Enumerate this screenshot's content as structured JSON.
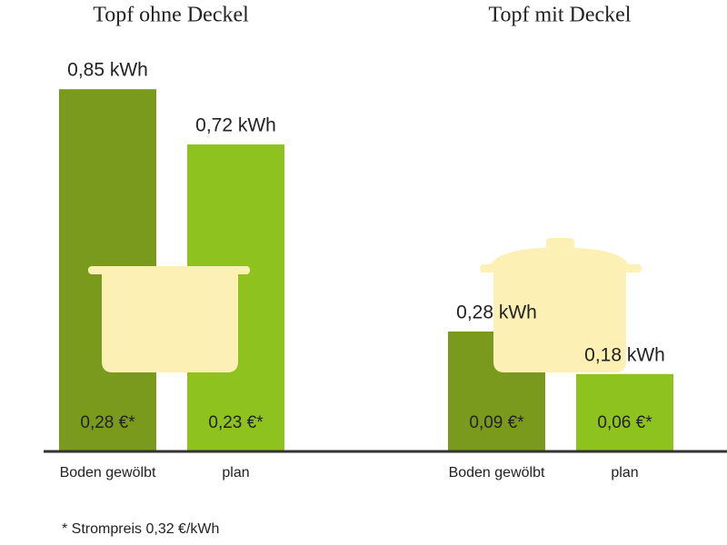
{
  "chart_data": [
    {
      "type": "bar",
      "title": "Topf ohne Deckel",
      "categories": [
        "Boden gewölbt",
        "plan"
      ],
      "values": [
        0.85,
        0.72
      ],
      "value_labels": [
        "0,85 kWh",
        "0,72 kWh"
      ],
      "colors": [
        "#7a9a1e",
        "#8dc21f"
      ],
      "costs": {
        "values": [
          0.28,
          0.23
        ],
        "value_labels": [
          "0,28 €*",
          "0,23 €*"
        ]
      }
    },
    {
      "type": "bar",
      "title": "Topf mit Deckel",
      "categories": [
        "Boden gewölbt",
        "plan"
      ],
      "values": [
        0.28,
        0.18
      ],
      "value_labels": [
        "0,28 kWh",
        "0,18 kWh"
      ],
      "colors": [
        "#7a9a1e",
        "#8dc21f"
      ],
      "costs": {
        "values": [
          0.09,
          0.06
        ],
        "value_labels": [
          "0,09 €*",
          "0,06 €*"
        ]
      }
    }
  ],
  "footnote": "* Strompreis 0,32 €/kWh"
}
